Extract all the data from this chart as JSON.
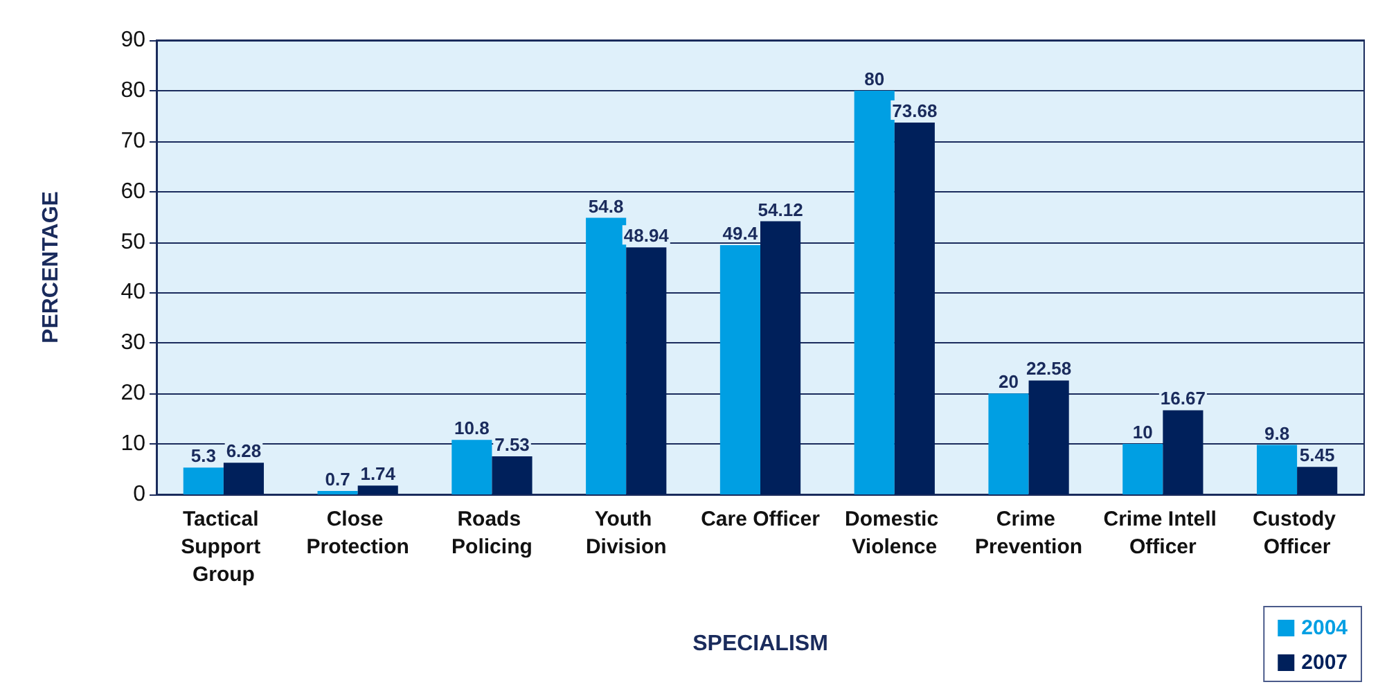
{
  "chart_data": {
    "type": "bar",
    "xlabel": "SPECIALISM",
    "ylabel": "PERCENTAGE",
    "categories": [
      "Tactical Support Group",
      "Close Protection",
      "Roads Policing",
      "Youth Division",
      "Care Officer",
      "Domestic Violence",
      "Crime Prevention",
      "Crime Intell Officer",
      "Custody Officer"
    ],
    "series": [
      {
        "name": "2004",
        "color": "#009fe3",
        "values": [
          5.3,
          0.7,
          10.8,
          54.8,
          49.4,
          80,
          20,
          10,
          9.8
        ]
      },
      {
        "name": "2007",
        "color": "#00205b",
        "values": [
          6.28,
          1.74,
          7.53,
          48.94,
          54.12,
          73.68,
          22.58,
          16.67,
          5.45
        ]
      }
    ],
    "ylim": [
      0,
      90
    ],
    "yticks": [
      0,
      10,
      20,
      30,
      40,
      50,
      60,
      70,
      80,
      90
    ],
    "grid": "y",
    "legend": "bottom right",
    "data_labels": true
  }
}
